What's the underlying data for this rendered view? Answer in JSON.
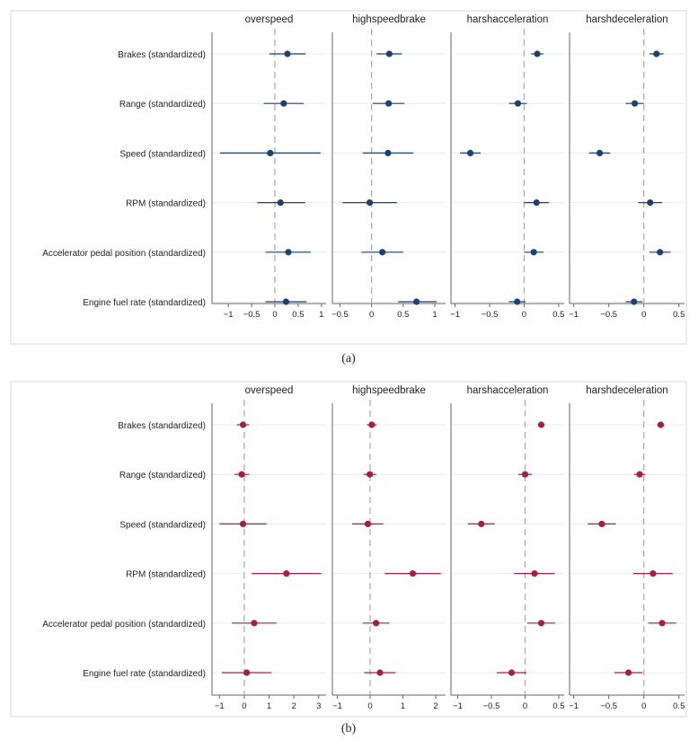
{
  "chart_data": [
    {
      "type": "scatter",
      "subtype": "coefficient-plot",
      "caption": "(a)",
      "color": "#1f3f6e",
      "categories": [
        "Brakes (standardized)",
        "Range (standardized)",
        "Speed (standardized)",
        "RPM (standardized)",
        "Accelerator pedal position (standardized)",
        "Engine fuel rate (standardized)"
      ],
      "reference_line": 0,
      "panels": [
        {
          "title": "overspeed",
          "xlim": [
            -1.35,
            1.1
          ],
          "ticks": [
            -1,
            -0.5,
            0,
            0.5,
            1
          ],
          "tick_labels": [
            "−1",
            "−0.5",
            "0",
            "0.5",
            "1"
          ],
          "estimates": [
            0.27,
            0.19,
            -0.1,
            0.12,
            0.29,
            0.24
          ],
          "lower": [
            -0.12,
            -0.24,
            -1.18,
            -0.38,
            -0.2,
            -0.2
          ],
          "upper": [
            0.66,
            0.62,
            0.98,
            0.65,
            0.77,
            0.68
          ]
        },
        {
          "title": "highspeedbrake",
          "xlim": [
            -0.62,
            1.17
          ],
          "ticks": [
            -0.5,
            0,
            0.5,
            1
          ],
          "tick_labels": [
            "−0.5",
            "0",
            "0.5",
            "1"
          ],
          "estimates": [
            0.28,
            0.27,
            0.26,
            -0.03,
            0.17,
            0.71
          ],
          "lower": [
            0.08,
            0.02,
            -0.14,
            -0.46,
            -0.16,
            0.42
          ],
          "upper": [
            0.48,
            0.52,
            0.66,
            0.4,
            0.5,
            1.03
          ]
        },
        {
          "title": "harshacceleration",
          "xlim": [
            -1.06,
            0.58
          ],
          "ticks": [
            -1,
            -0.5,
            0,
            0.5
          ],
          "tick_labels": [
            "−1",
            "−0.5",
            "0",
            "0.5"
          ],
          "estimates": [
            0.19,
            -0.09,
            -0.78,
            0.18,
            0.14,
            -0.1
          ],
          "lower": [
            0.1,
            -0.22,
            -0.93,
            0.0,
            0.0,
            -0.22
          ],
          "upper": [
            0.28,
            0.04,
            -0.63,
            0.36,
            0.28,
            0.02
          ]
        },
        {
          "title": "harshdeceleration",
          "xlim": [
            -1.06,
            0.58
          ],
          "ticks": [
            -1,
            -0.5,
            0,
            0.5
          ],
          "tick_labels": [
            "−1",
            "−0.5",
            "0",
            "0.5"
          ],
          "estimates": [
            0.18,
            -0.13,
            -0.63,
            0.09,
            0.23,
            -0.14
          ],
          "lower": [
            0.08,
            -0.26,
            -0.78,
            -0.08,
            0.08,
            -0.26
          ],
          "upper": [
            0.28,
            0.0,
            -0.48,
            0.26,
            0.38,
            -0.02
          ]
        }
      ]
    },
    {
      "type": "scatter",
      "subtype": "coefficient-plot",
      "caption": "(b)",
      "color": "#a3203f",
      "categories": [
        "Brakes (standardized)",
        "Range (standardized)",
        "Speed (standardized)",
        "RPM (standardized)",
        "Accelerator pedal position (standardized)",
        "Engine fuel rate (standardized)"
      ],
      "reference_line": 0,
      "panels": [
        {
          "title": "overspeed",
          "xlim": [
            -1.3,
            3.3
          ],
          "ticks": [
            -1,
            0,
            1,
            2,
            3
          ],
          "tick_labels": [
            "−1",
            "0",
            "1",
            "2",
            "3"
          ],
          "estimates": [
            -0.05,
            -0.1,
            -0.05,
            1.7,
            0.4,
            0.1
          ],
          "lower": [
            -0.3,
            -0.4,
            -1.0,
            0.3,
            -0.5,
            -0.9
          ],
          "upper": [
            0.2,
            0.2,
            0.9,
            3.1,
            1.3,
            1.1
          ]
        },
        {
          "title": "highspeedbrake",
          "xlim": [
            -1.15,
            2.3
          ],
          "ticks": [
            -1,
            0,
            1,
            2
          ],
          "tick_labels": [
            "−1",
            "0",
            "1",
            "2"
          ],
          "estimates": [
            0.05,
            -0.01,
            -0.07,
            1.3,
            0.18,
            0.3
          ],
          "lower": [
            -0.1,
            -0.2,
            -0.55,
            0.45,
            -0.23,
            -0.18
          ],
          "upper": [
            0.2,
            0.18,
            0.4,
            2.15,
            0.59,
            0.78
          ]
        },
        {
          "title": "harshacceleration",
          "xlim": [
            -1.1,
            0.58
          ],
          "ticks": [
            -1,
            -0.5,
            0,
            0.5
          ],
          "tick_labels": [
            "−1",
            "−0.5",
            "0",
            "0.5"
          ],
          "estimates": [
            0.24,
            0.0,
            -0.65,
            0.14,
            0.24,
            -0.2
          ],
          "lower": [
            0.19,
            -0.1,
            -0.85,
            -0.16,
            0.03,
            -0.42
          ],
          "upper": [
            0.29,
            0.1,
            -0.45,
            0.44,
            0.45,
            0.02
          ]
        },
        {
          "title": "harshdeceleration",
          "xlim": [
            -1.06,
            0.58
          ],
          "ticks": [
            -1,
            -0.5,
            0,
            0.5
          ],
          "tick_labels": [
            "−1",
            "−0.5",
            "0",
            "0.5"
          ],
          "estimates": [
            0.24,
            -0.06,
            -0.6,
            0.13,
            0.26,
            -0.22
          ],
          "lower": [
            0.19,
            -0.14,
            -0.8,
            -0.15,
            0.06,
            -0.42
          ],
          "upper": [
            0.29,
            0.02,
            -0.4,
            0.41,
            0.46,
            -0.02
          ]
        }
      ]
    }
  ]
}
